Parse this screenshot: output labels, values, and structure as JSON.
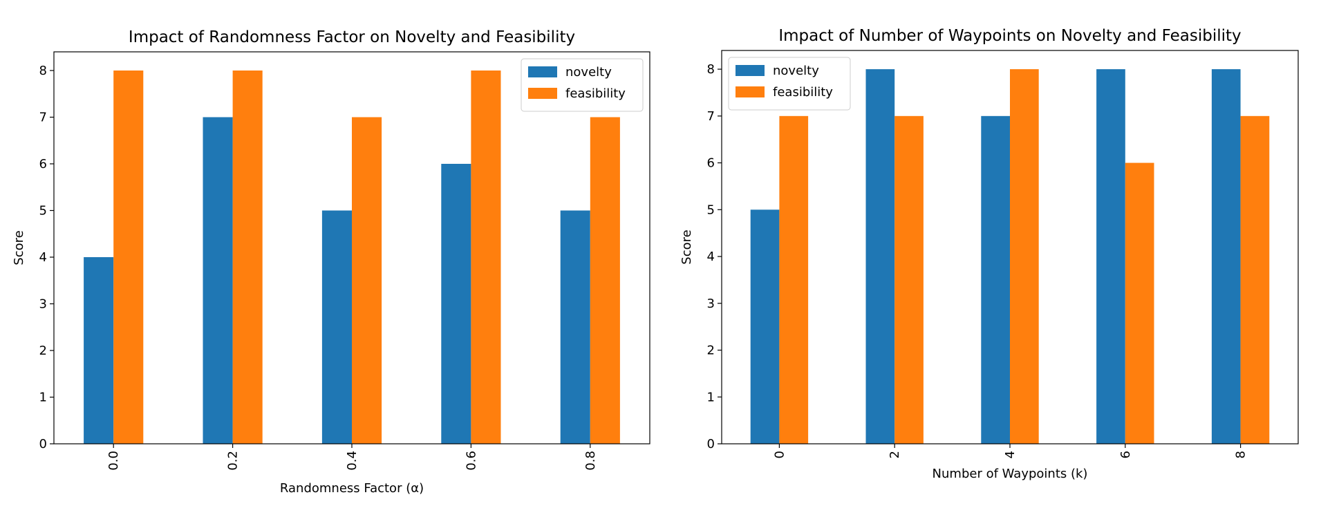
{
  "colors": {
    "novelty": "#1f77b4",
    "feasibility": "#ff7f0e",
    "axes": "#000000",
    "background": "#ffffff"
  },
  "chart_data": [
    {
      "type": "bar",
      "title": "Impact of Randomness Factor on Novelty and Feasibility",
      "xlabel": "Randomness Factor (α)",
      "ylabel": "Score",
      "categories": [
        "0.0",
        "0.2",
        "0.4",
        "0.6",
        "0.8"
      ],
      "series": [
        {
          "name": "novelty",
          "values": [
            4,
            7,
            5,
            6,
            5
          ]
        },
        {
          "name": "feasibility",
          "values": [
            8,
            8,
            7,
            8,
            7
          ]
        }
      ],
      "ylim": [
        0,
        8.4
      ],
      "yticks": [
        0,
        1,
        2,
        3,
        4,
        5,
        6,
        7,
        8
      ],
      "xtick_rotation": 90,
      "grid": false,
      "legend": "upper right"
    },
    {
      "type": "bar",
      "title": "Impact of Number of Waypoints on Novelty and Feasibility",
      "xlabel": "Number of Waypoints (k)",
      "ylabel": "Score",
      "categories": [
        "0",
        "2",
        "4",
        "6",
        "8"
      ],
      "series": [
        {
          "name": "novelty",
          "values": [
            5,
            8,
            7,
            8,
            8
          ]
        },
        {
          "name": "feasibility",
          "values": [
            7,
            7,
            8,
            6,
            7
          ]
        }
      ],
      "ylim": [
        0,
        8.4
      ],
      "yticks": [
        0,
        1,
        2,
        3,
        4,
        5,
        6,
        7,
        8
      ],
      "xtick_rotation": 90,
      "grid": false,
      "legend": "upper left"
    }
  ]
}
